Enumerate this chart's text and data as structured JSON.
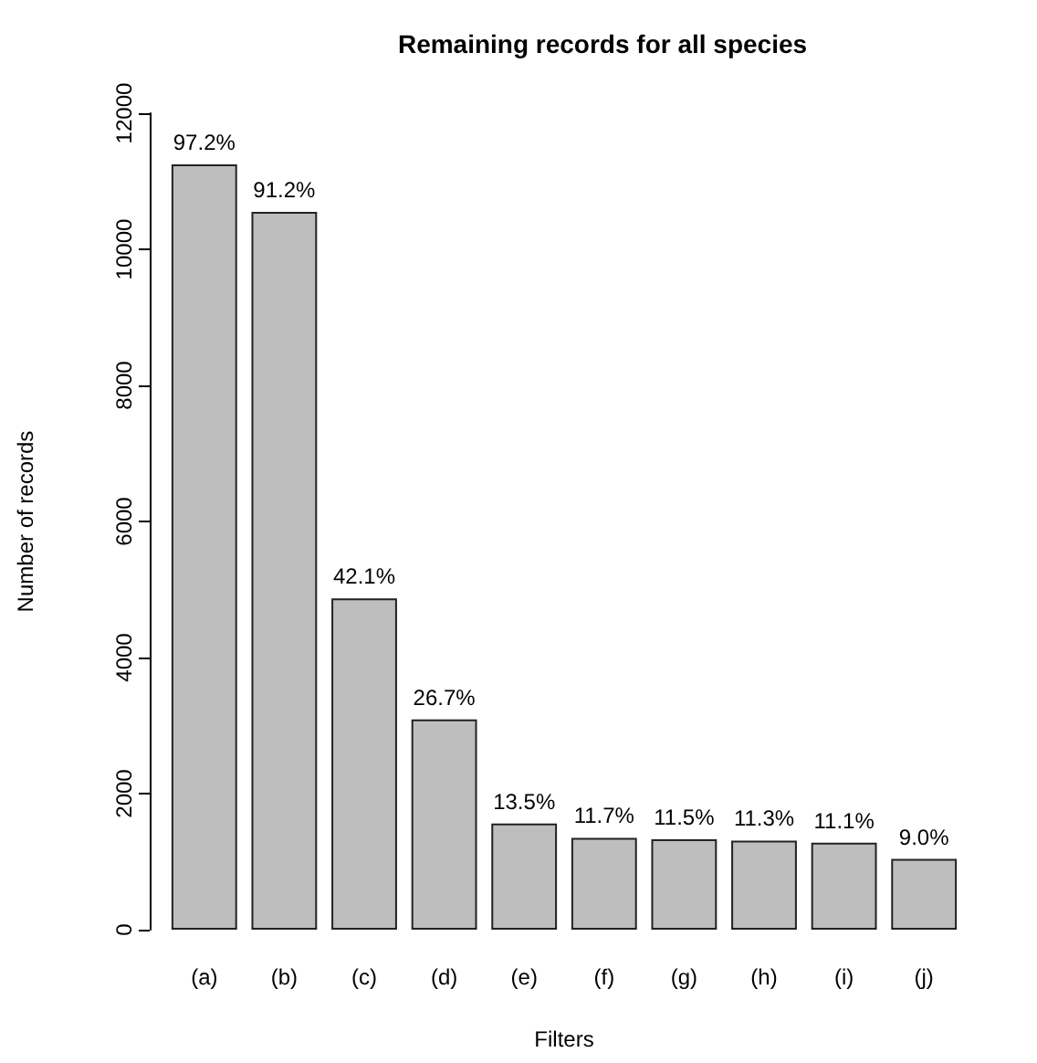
{
  "chart_data": {
    "type": "bar",
    "title": "Remaining records for all species",
    "xlabel": "Filters",
    "ylabel": "Number of records",
    "categories": [
      "(a)",
      "(b)",
      "(c)",
      "(d)",
      "(e)",
      "(f)",
      "(g)",
      "(h)",
      "(i)",
      "(j)"
    ],
    "values": [
      11250,
      10550,
      4870,
      3090,
      1560,
      1350,
      1330,
      1310,
      1280,
      1040
    ],
    "annotations": [
      {
        "text": "97.2%",
        "x": "(a)",
        "y": 11250
      },
      {
        "text": "91.2%",
        "x": "(b)",
        "y": 10550
      },
      {
        "text": "42.1%",
        "x": "(c)",
        "y": 4870
      },
      {
        "text": "26.7%",
        "x": "(d)",
        "y": 3090
      },
      {
        "text": "13.5%",
        "x": "(e)",
        "y": 1560
      },
      {
        "text": "11.7%",
        "x": "(f)",
        "y": 1350
      },
      {
        "text": "11.5%",
        "x": "(g)",
        "y": 1330
      },
      {
        "text": "11.3%",
        "x": "(h)",
        "y": 1310
      },
      {
        "text": "11.1%",
        "x": "(i)",
        "y": 1280
      },
      {
        "text": "9.0%",
        "x": "(j)",
        "y": 1040
      }
    ],
    "color": "#bebebe",
    "ylim": [
      0,
      12000
    ],
    "yticks": [
      0,
      2000,
      4000,
      6000,
      8000,
      10000,
      12000
    ],
    "grid": false
  }
}
